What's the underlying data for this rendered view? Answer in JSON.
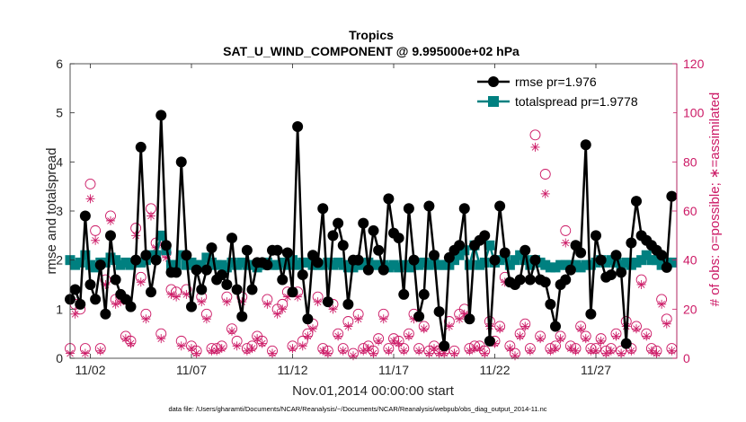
{
  "chart_data": {
    "type": "line",
    "title": "Tropics",
    "subtitle": "SAT_U_WIND_COMPONENT @ 9.995000e+02 hPa",
    "xlabel": "Nov.01,2014 00:00:00 start",
    "ylabel": "rmse and totalspread",
    "ylabel_right": "# of obs: o=possible; ∗=assimilated",
    "footer": "data file: /Users/gharamti/Documents/NCAR/Reanalysis/~/Documents/NCAR/Reanalysis/webpub/obs_diag_output_2014-11.nc",
    "x_unit": "day of Nov 2014 (fractional, 6-hourly)",
    "xlim": [
      1,
      31
    ],
    "ylim": [
      0,
      6
    ],
    "ylim_right": [
      0,
      120
    ],
    "yticks": [
      0,
      1,
      2,
      3,
      4,
      5,
      6
    ],
    "yticks_right": [
      0,
      20,
      40,
      60,
      80,
      100,
      120
    ],
    "xticks": [
      {
        "day": 2,
        "label": "11/02"
      },
      {
        "day": 7,
        "label": "11/07"
      },
      {
        "day": 12,
        "label": "11/12"
      },
      {
        "day": 17,
        "label": "11/17"
      },
      {
        "day": 22,
        "label": "11/22"
      },
      {
        "day": 27,
        "label": "11/27"
      }
    ],
    "grid": false,
    "legend_position": "top-right",
    "series": [
      {
        "name": "rmse pr=1.976",
        "color": "#000000",
        "marker": "circle",
        "x": [
          1.0,
          1.25,
          1.5,
          1.75,
          2.0,
          2.25,
          2.5,
          2.75,
          3.0,
          3.25,
          3.5,
          3.75,
          4.0,
          4.25,
          4.5,
          4.75,
          5.0,
          5.25,
          5.5,
          5.75,
          6.0,
          6.25,
          6.5,
          6.75,
          7.0,
          7.25,
          7.5,
          7.75,
          8.0,
          8.25,
          8.5,
          8.75,
          9.0,
          9.25,
          9.5,
          9.75,
          10.0,
          10.25,
          10.5,
          10.75,
          11.0,
          11.25,
          11.5,
          11.75,
          12.0,
          12.25,
          12.5,
          12.75,
          13.0,
          13.25,
          13.5,
          13.75,
          14.0,
          14.25,
          14.5,
          14.75,
          15.0,
          15.25,
          15.5,
          15.75,
          16.0,
          16.25,
          16.5,
          16.75,
          17.0,
          17.25,
          17.5,
          17.75,
          18.0,
          18.25,
          18.5,
          18.75,
          19.0,
          19.25,
          19.5,
          19.75,
          20.0,
          20.25,
          20.5,
          20.75,
          21.0,
          21.25,
          21.5,
          21.75,
          22.0,
          22.25,
          22.5,
          22.75,
          23.0,
          23.25,
          23.5,
          23.75,
          24.0,
          24.25,
          24.5,
          24.75,
          25.0,
          25.25,
          25.5,
          25.75,
          26.0,
          26.25,
          26.5,
          26.75,
          27.0,
          27.25,
          27.5,
          27.75,
          28.0,
          28.25,
          28.5,
          28.75,
          29.0,
          29.25,
          29.5,
          29.75,
          30.0,
          30.25,
          30.5,
          30.75
        ],
        "values": [
          1.2,
          1.4,
          1.1,
          2.9,
          1.5,
          1.2,
          1.9,
          0.9,
          2.5,
          1.6,
          1.3,
          1.2,
          1.05,
          2.0,
          4.3,
          2.1,
          1.35,
          2.0,
          4.95,
          2.3,
          1.75,
          1.75,
          4.0,
          2.1,
          1.05,
          1.8,
          1.4,
          1.8,
          2.25,
          1.6,
          1.7,
          1.5,
          2.45,
          1.4,
          0.85,
          2.2,
          1.4,
          1.95,
          1.95,
          1.9,
          2.2,
          2.2,
          1.6,
          2.15,
          1.35,
          4.72,
          1.7,
          0.8,
          2.1,
          1.95,
          3.05,
          1.15,
          2.5,
          2.75,
          2.3,
          1.1,
          2.0,
          2.0,
          2.75,
          1.8,
          2.6,
          2.2,
          1.8,
          3.25,
          2.55,
          2.45,
          1.3,
          3.05,
          2.0,
          0.85,
          1.3,
          3.1,
          2.1,
          0.95,
          0.25,
          2.05,
          2.2,
          2.3,
          3.05,
          0.8,
          2.3,
          2.4,
          2.5,
          0.35,
          2.0,
          3.1,
          2.15,
          1.55,
          1.5,
          1.6,
          2.2,
          1.6,
          2.0,
          1.6,
          1.55,
          1.1,
          0.65,
          1.5,
          1.6,
          1.8,
          2.3,
          2.15,
          4.35,
          0.9,
          2.5,
          2.0,
          1.65,
          1.7,
          2.1,
          1.75,
          0.3,
          2.35,
          3.2,
          2.5,
          2.4,
          2.3,
          2.2,
          2.1,
          1.85,
          3.3
        ]
      },
      {
        "name": "totalspread pr=1.9778",
        "color": "#008080",
        "marker": "square",
        "x": [
          1.0,
          1.25,
          1.5,
          1.75,
          2.0,
          2.25,
          2.5,
          2.75,
          3.0,
          3.25,
          3.5,
          3.75,
          4.0,
          4.25,
          4.5,
          4.75,
          5.0,
          5.25,
          5.5,
          5.75,
          6.0,
          6.25,
          6.5,
          6.75,
          7.0,
          7.25,
          7.5,
          7.75,
          8.0,
          8.25,
          8.5,
          8.75,
          9.0,
          9.25,
          9.5,
          9.75,
          10.0,
          10.25,
          10.5,
          10.75,
          11.0,
          11.25,
          11.5,
          11.75,
          12.0,
          12.25,
          12.5,
          12.75,
          13.0,
          13.25,
          13.5,
          13.75,
          14.0,
          14.25,
          14.5,
          14.75,
          15.0,
          15.25,
          15.5,
          15.75,
          16.0,
          16.25,
          16.5,
          16.75,
          17.0,
          17.25,
          17.5,
          17.75,
          18.0,
          18.25,
          18.5,
          18.75,
          19.0,
          19.25,
          19.5,
          19.75,
          20.0,
          20.25,
          20.5,
          20.75,
          21.0,
          21.25,
          21.5,
          21.75,
          22.0,
          22.25,
          22.5,
          22.75,
          23.0,
          23.25,
          23.5,
          23.75,
          24.0,
          24.25,
          24.5,
          24.75,
          25.0,
          25.25,
          25.5,
          25.75,
          26.0,
          26.25,
          26.5,
          26.75,
          27.0,
          27.25,
          27.5,
          27.75,
          28.0,
          28.25,
          28.5,
          28.75,
          29.0,
          29.25,
          29.5,
          29.75,
          30.0,
          30.25,
          30.5,
          30.75
        ],
        "values": [
          2.0,
          1.9,
          1.95,
          2.1,
          1.9,
          1.85,
          1.95,
          1.95,
          2.05,
          2.0,
          1.9,
          1.95,
          1.9,
          1.95,
          1.95,
          2.0,
          2.1,
          2.1,
          2.5,
          2.2,
          1.9,
          1.9,
          2.1,
          1.9,
          1.95,
          1.9,
          1.9,
          2.05,
          1.95,
          1.9,
          1.9,
          1.85,
          1.95,
          1.9,
          1.95,
          1.9,
          1.9,
          1.85,
          1.9,
          1.95,
          1.9,
          1.9,
          1.95,
          1.9,
          2.0,
          1.9,
          1.95,
          1.95,
          1.9,
          1.9,
          1.9,
          1.95,
          1.9,
          1.95,
          1.9,
          1.85,
          1.85,
          1.9,
          1.9,
          1.95,
          1.9,
          1.9,
          1.9,
          1.85,
          1.9,
          1.85,
          1.9,
          1.85,
          1.9,
          1.9,
          1.95,
          1.9,
          1.95,
          1.9,
          1.9,
          1.9,
          2.0,
          2.1,
          2.2,
          1.9,
          2.3,
          1.9,
          1.95,
          2.3,
          1.95,
          2.0,
          2.05,
          1.9,
          2.0,
          2.1,
          2.0,
          1.9,
          2.0,
          1.95,
          1.9,
          1.85,
          1.85,
          1.9,
          1.9,
          1.9,
          1.9,
          1.85,
          1.9,
          1.9,
          1.95,
          2.0,
          1.95,
          2.0,
          1.95,
          1.9,
          1.95,
          1.9,
          1.95,
          2.0,
          2.1,
          2.0,
          2.0,
          1.9,
          1.95,
          1.95
        ]
      },
      {
        "name": "possible",
        "color": "#cc1a66",
        "marker": "open-circle",
        "axis": "right",
        "x": [
          1.0,
          1.25,
          1.5,
          1.75,
          2.0,
          2.25,
          2.5,
          2.75,
          3.0,
          3.25,
          3.5,
          3.75,
          4.0,
          4.25,
          4.5,
          4.75,
          5.0,
          5.25,
          5.5,
          5.75,
          6.0,
          6.25,
          6.5,
          6.75,
          7.0,
          7.25,
          7.5,
          7.75,
          8.0,
          8.25,
          8.5,
          8.75,
          9.0,
          9.25,
          9.5,
          9.75,
          10.0,
          10.25,
          10.5,
          10.75,
          11.0,
          11.25,
          11.5,
          11.75,
          12.0,
          12.25,
          12.5,
          12.75,
          13.0,
          13.25,
          13.5,
          13.75,
          14.0,
          14.25,
          14.5,
          14.75,
          15.0,
          15.25,
          15.5,
          15.75,
          16.0,
          16.25,
          16.5,
          16.75,
          17.0,
          17.25,
          17.5,
          17.75,
          18.0,
          18.25,
          18.5,
          18.75,
          19.0,
          19.25,
          19.5,
          19.75,
          20.0,
          20.25,
          20.5,
          20.75,
          21.0,
          21.25,
          21.5,
          21.75,
          22.0,
          22.25,
          22.5,
          22.75,
          23.0,
          23.25,
          23.5,
          23.75,
          24.0,
          24.25,
          24.5,
          24.75,
          25.0,
          25.25,
          25.5,
          25.75,
          26.0,
          26.25,
          26.5,
          26.75,
          27.0,
          27.25,
          27.5,
          27.75,
          28.0,
          28.25,
          28.5,
          28.75,
          29.0,
          29.25,
          29.5,
          29.75,
          30.0,
          30.25,
          30.5,
          30.75
        ],
        "values": [
          4,
          22,
          20,
          4,
          71,
          52,
          4,
          32,
          58,
          24,
          25,
          9,
          7,
          53,
          33,
          18,
          61,
          47,
          10,
          43,
          28,
          27,
          7,
          28,
          5,
          3,
          25,
          18,
          4,
          4,
          5,
          25,
          12,
          7,
          25,
          4,
          5,
          9,
          7,
          24,
          3,
          20,
          22,
          27,
          5,
          27,
          7,
          10,
          14,
          25,
          4,
          3,
          22,
          10,
          4,
          15,
          2,
          18,
          4,
          5,
          3,
          8,
          18,
          4,
          8,
          7,
          4,
          10,
          18,
          4,
          13,
          3,
          5,
          3,
          3,
          15,
          3,
          18,
          20,
          4,
          5,
          5,
          3,
          15,
          7,
          13,
          33,
          5,
          2,
          10,
          14,
          4,
          91,
          9,
          75,
          4,
          5,
          9,
          52,
          5,
          4,
          13,
          9,
          4,
          4,
          8,
          3,
          4,
          10,
          3,
          15,
          4,
          13,
          32,
          10,
          4,
          3,
          24,
          16,
          4
        ]
      },
      {
        "name": "assimilated",
        "color": "#cc1a66",
        "marker": "asterisk",
        "axis": "right",
        "x": [
          1.0,
          1.25,
          1.5,
          1.75,
          2.0,
          2.25,
          2.5,
          2.75,
          3.0,
          3.25,
          3.5,
          3.75,
          4.0,
          4.25,
          4.5,
          4.75,
          5.0,
          5.25,
          5.5,
          5.75,
          6.0,
          6.25,
          6.5,
          6.75,
          7.0,
          7.25,
          7.5,
          7.75,
          8.0,
          8.25,
          8.5,
          8.75,
          9.0,
          9.25,
          9.5,
          9.75,
          10.0,
          10.25,
          10.5,
          10.75,
          11.0,
          11.25,
          11.5,
          11.75,
          12.0,
          12.25,
          12.5,
          12.75,
          13.0,
          13.25,
          13.5,
          13.75,
          14.0,
          14.25,
          14.5,
          14.75,
          15.0,
          15.25,
          15.5,
          15.75,
          16.0,
          16.25,
          16.5,
          16.75,
          17.0,
          17.25,
          17.5,
          17.75,
          18.0,
          18.25,
          18.5,
          18.75,
          19.0,
          19.25,
          19.5,
          19.75,
          20.0,
          20.25,
          20.5,
          20.75,
          21.0,
          21.25,
          21.5,
          21.75,
          22.0,
          22.25,
          22.5,
          22.75,
          23.0,
          23.25,
          23.5,
          23.75,
          24.0,
          24.25,
          24.5,
          24.75,
          25.0,
          25.25,
          25.5,
          25.75,
          26.0,
          26.25,
          26.5,
          26.75,
          27.0,
          27.25,
          27.5,
          27.75,
          28.0,
          28.25,
          28.5,
          28.75,
          29.0,
          29.25,
          29.5,
          29.75,
          30.0,
          30.25,
          30.5,
          30.75
        ],
        "values": [
          2,
          18,
          22,
          2,
          65,
          48,
          3,
          30,
          56,
          22,
          23,
          8,
          6,
          50,
          31,
          16,
          58,
          45,
          8,
          41,
          26,
          25,
          5,
          26,
          4,
          2,
          23,
          16,
          3,
          3,
          4,
          23,
          11,
          5,
          23,
          3,
          4,
          8,
          6,
          22,
          2,
          18,
          20,
          25,
          4,
          25,
          5,
          9,
          12,
          23,
          3,
          2,
          20,
          9,
          3,
          13,
          1,
          16,
          3,
          4,
          2,
          7,
          16,
          3,
          7,
          6,
          3,
          9,
          16,
          3,
          12,
          2,
          4,
          2,
          2,
          13,
          2,
          16,
          18,
          3,
          4,
          4,
          2,
          13,
          6,
          12,
          31,
          4,
          1,
          9,
          13,
          3,
          86,
          8,
          67,
          3,
          4,
          8,
          47,
          4,
          3,
          12,
          8,
          3,
          3,
          7,
          2,
          3,
          9,
          2,
          13,
          3,
          12,
          30,
          9,
          3,
          2,
          22,
          14,
          3
        ]
      }
    ]
  }
}
